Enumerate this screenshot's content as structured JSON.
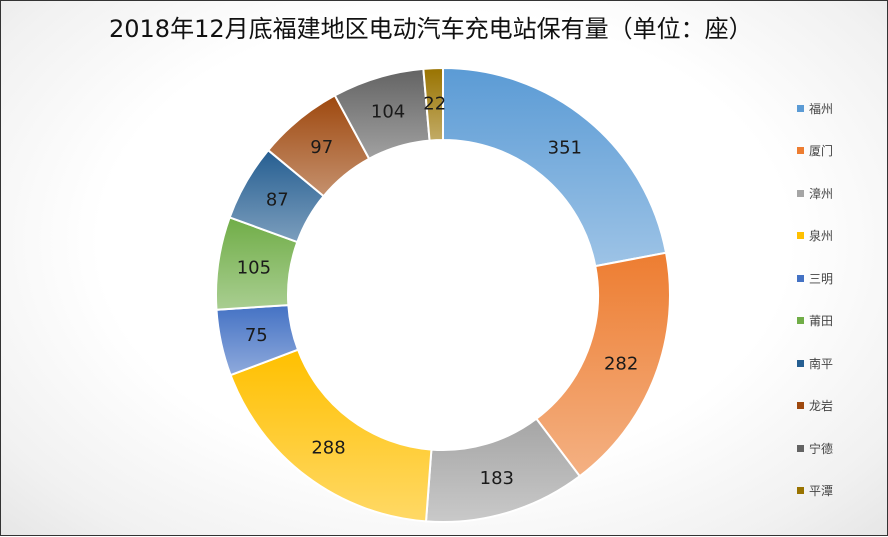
{
  "chart_data": {
    "type": "pie",
    "variant": "doughnut",
    "title": "2018年12月底福建地区电动汽车充电站保有量（单位：座）",
    "categories": [
      "福州",
      "厦门",
      "漳州",
      "泉州",
      "三明",
      "莆田",
      "南平",
      "龙岩",
      "宁德",
      "平潭"
    ],
    "values": [
      351,
      282,
      183,
      288,
      75,
      105,
      87,
      97,
      104,
      22
    ],
    "colors": [
      "#5b9bd5",
      "#ed7d31",
      "#a5a5a5",
      "#ffc000",
      "#4472c4",
      "#70ad47",
      "#255e91",
      "#9e480e",
      "#636363",
      "#997300"
    ],
    "legend_position": "right",
    "data_labels": true
  }
}
